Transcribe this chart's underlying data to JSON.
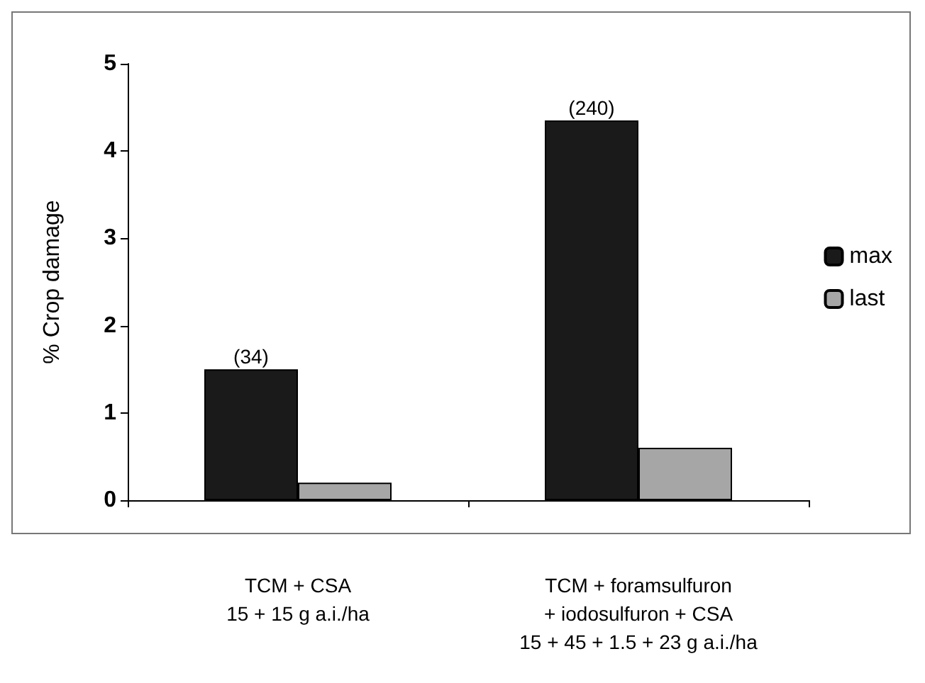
{
  "chart_data": {
    "type": "bar",
    "ylabel": "% Crop damage",
    "categories": [
      "TCM + CSA\n15 + 15 g a.i./ha",
      "TCM + foramsulfuron\n+ iodosulfuron + CSA\n15 + 45 + 1.5 + 23 g a.i./ha"
    ],
    "series": [
      {
        "name": "max",
        "color": "#1a1a1a",
        "values": [
          1.5,
          4.35
        ]
      },
      {
        "name": "last",
        "color": "#a6a6a6",
        "values": [
          0.2,
          0.6
        ]
      }
    ],
    "annotations": [
      {
        "text": "(34)",
        "x": "TCM + CSA\n15 + 15 g a.i./ha",
        "y": 1.5
      },
      {
        "text": "(240)",
        "x": "TCM + foramsulfuron\n+ iodosulfuron + CSA\n15 + 45 + 1.5 + 23 g a.i./ha",
        "y": 4.35
      }
    ],
    "ylim": [
      0,
      5
    ],
    "yticks": [
      0,
      1,
      2,
      3,
      4,
      5
    ],
    "grid": false,
    "legend": "right"
  }
}
